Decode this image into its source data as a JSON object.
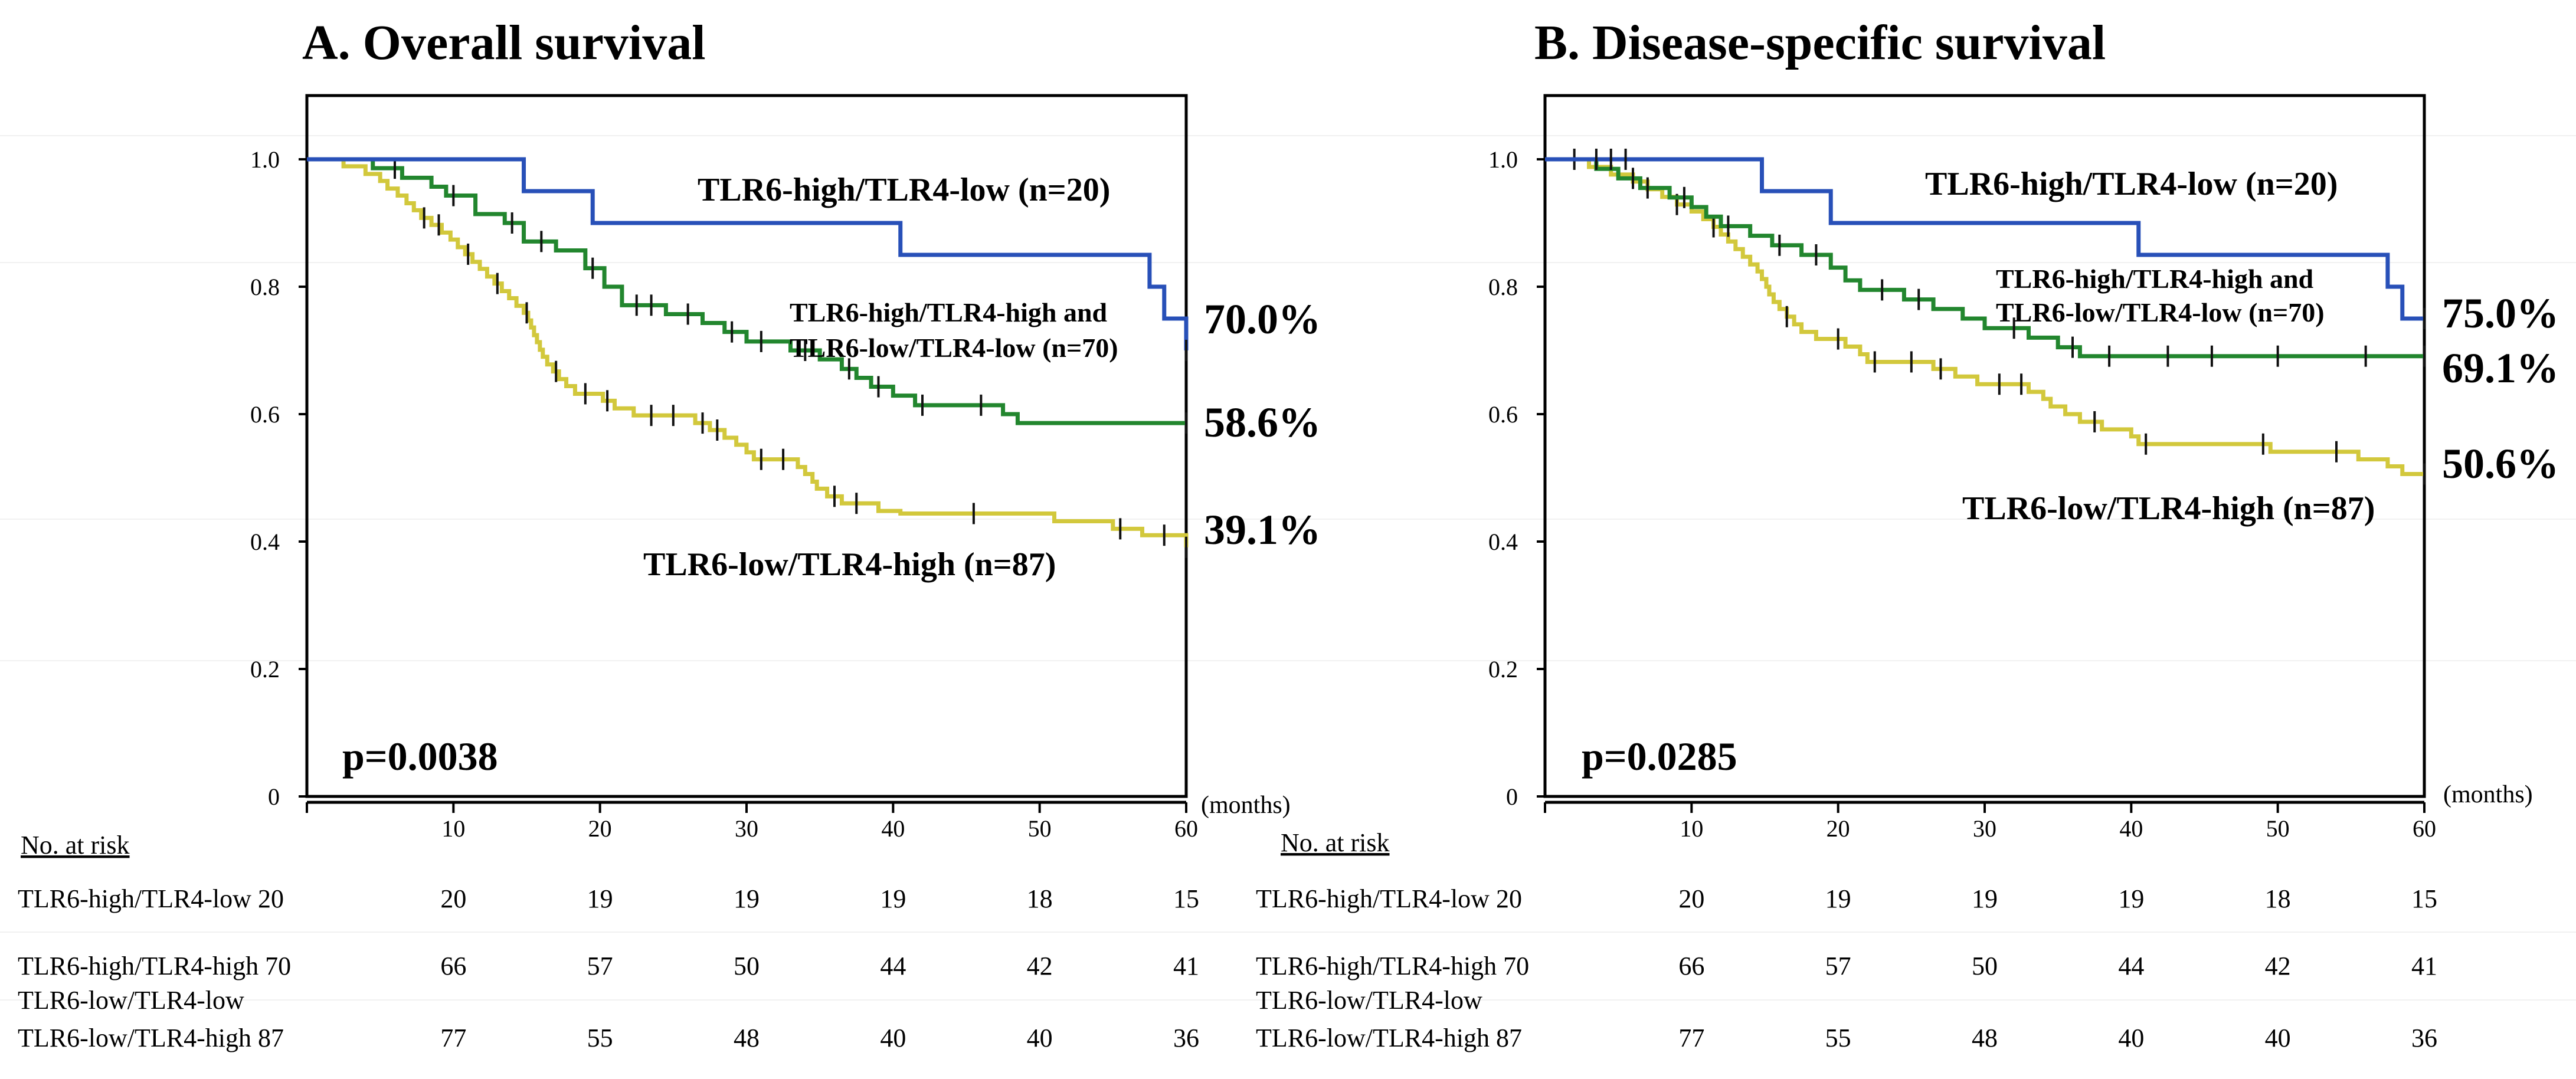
{
  "colors": {
    "TLR6-high/TLR4-low": "#2850b8",
    "TLR6-high/TLR4-high and TLR6-low/TLR4-low": "#22862e",
    "TLR6-low/TLR4-high": "#d2c83c"
  },
  "risk_header": "No. at risk",
  "x_unit": "(months)",
  "chart_data": [
    {
      "id": "A",
      "type": "line",
      "title": "A.  Overall survival",
      "xlabel": "(months)",
      "ylabel": "",
      "xlim": [
        0,
        60
      ],
      "ylim": [
        0,
        1.1
      ],
      "x_ticks": [
        10,
        20,
        30,
        40,
        50,
        60
      ],
      "y_ticks": [
        0,
        0.2,
        0.4,
        0.6,
        0.8,
        1.0
      ],
      "y_tick_labels": [
        "0",
        "0.2",
        "0.4",
        "0.6",
        "0.8",
        "1.0"
      ],
      "p_value": "p=0.0038",
      "series": [
        {
          "key": "TLR6-high/TLR4-low",
          "label_lines": [
            "TLR6-high/TLR4-low (n=20)"
          ],
          "label_style": "big",
          "end_label": "70.0%",
          "steps": [
            [
              0,
              1.0
            ],
            [
              14.8,
              0.95
            ],
            [
              19.5,
              0.9
            ],
            [
              40.5,
              0.85
            ],
            [
              57.5,
              0.8
            ],
            [
              58.5,
              0.75
            ],
            [
              60,
              0.7
            ]
          ],
          "censor": [
            60
          ]
        },
        {
          "key": "TLR6-high/TLR4-high and TLR6-low/TLR4-low",
          "label_lines": [
            "TLR6-high/TLR4-high and",
            "TLR6-low/TLR4-low  (n=70)"
          ],
          "label_style": "small",
          "end_label": "58.6%",
          "steps": [
            [
              0,
              1.0
            ],
            [
              4.5,
              0.986
            ],
            [
              6.5,
              0.971
            ],
            [
              8.5,
              0.957
            ],
            [
              9.5,
              0.943
            ],
            [
              11.5,
              0.914
            ],
            [
              13.5,
              0.9
            ],
            [
              14.8,
              0.871
            ],
            [
              17,
              0.857
            ],
            [
              19,
              0.829
            ],
            [
              20.3,
              0.8
            ],
            [
              21.5,
              0.771
            ],
            [
              24.5,
              0.757
            ],
            [
              27,
              0.743
            ],
            [
              28.5,
              0.729
            ],
            [
              30,
              0.714
            ],
            [
              33,
              0.7
            ],
            [
              35,
              0.686
            ],
            [
              36.5,
              0.671
            ],
            [
              37.5,
              0.657
            ],
            [
              38.5,
              0.643
            ],
            [
              40,
              0.629
            ],
            [
              41.5,
              0.614
            ],
            [
              47.5,
              0.6
            ],
            [
              48.5,
              0.586
            ],
            [
              60,
              0.586
            ]
          ],
          "censor": [
            6,
            10,
            14,
            16,
            19.5,
            22.5,
            23.5,
            26,
            29,
            31,
            34,
            37,
            39,
            42,
            46,
            60
          ]
        },
        {
          "key": "TLR6-low/TLR4-high",
          "label_lines": [
            "TLR6-low/TLR4-high (n=87)"
          ],
          "label_style": "big",
          "end_label": "39.1%",
          "steps": [
            [
              0,
              1.0
            ],
            [
              2.5,
              0.989
            ],
            [
              4,
              0.977
            ],
            [
              5,
              0.966
            ],
            [
              5.5,
              0.954
            ],
            [
              6.2,
              0.943
            ],
            [
              6.8,
              0.931
            ],
            [
              7.3,
              0.92
            ],
            [
              7.8,
              0.908
            ],
            [
              8.5,
              0.897
            ],
            [
              9.2,
              0.885
            ],
            [
              9.8,
              0.874
            ],
            [
              10.3,
              0.862
            ],
            [
              10.8,
              0.851
            ],
            [
              11.3,
              0.839
            ],
            [
              11.8,
              0.828
            ],
            [
              12.3,
              0.816
            ],
            [
              12.8,
              0.805
            ],
            [
              13.3,
              0.793
            ],
            [
              13.8,
              0.782
            ],
            [
              14.3,
              0.77
            ],
            [
              14.8,
              0.759
            ],
            [
              15.1,
              0.747
            ],
            [
              15.3,
              0.736
            ],
            [
              15.5,
              0.724
            ],
            [
              15.7,
              0.713
            ],
            [
              15.9,
              0.701
            ],
            [
              16.1,
              0.69
            ],
            [
              16.4,
              0.678
            ],
            [
              16.8,
              0.667
            ],
            [
              17.2,
              0.655
            ],
            [
              17.7,
              0.644
            ],
            [
              18.3,
              0.632
            ],
            [
              20.2,
              0.621
            ],
            [
              21,
              0.609
            ],
            [
              22.3,
              0.598
            ],
            [
              26.5,
              0.586
            ],
            [
              27.5,
              0.575
            ],
            [
              28.5,
              0.563
            ],
            [
              29.3,
              0.552
            ],
            [
              30,
              0.54
            ],
            [
              30.5,
              0.529
            ],
            [
              33.5,
              0.517
            ],
            [
              34,
              0.506
            ],
            [
              34.5,
              0.494
            ],
            [
              34.8,
              0.483
            ],
            [
              35.5,
              0.471
            ],
            [
              36.5,
              0.46
            ],
            [
              39,
              0.448
            ],
            [
              40.5,
              0.444
            ],
            [
              51,
              0.432
            ],
            [
              55,
              0.42
            ],
            [
              57,
              0.41
            ],
            [
              60,
              0.391
            ]
          ],
          "censor": [
            8,
            9,
            11,
            13,
            15,
            17,
            19,
            20.5,
            23.5,
            25,
            27,
            28,
            31,
            32.5,
            36,
            37.5,
            45.5,
            55.5,
            58.5,
            60
          ]
        }
      ],
      "risk_table": {
        "row_labels": [
          [
            "TLR6-high/TLR4-low  20"
          ],
          [
            "TLR6-high/TLR4-high 70",
            "TLR6-low/TLR4-low"
          ],
          [
            "TLR6-low/TLR4-high 87"
          ]
        ],
        "values": [
          [
            20,
            19,
            19,
            19,
            18,
            15
          ],
          [
            66,
            57,
            50,
            44,
            42,
            41
          ],
          [
            77,
            55,
            48,
            40,
            40,
            36
          ]
        ]
      }
    },
    {
      "id": "B",
      "type": "line",
      "title": "B. Disease-specific survival",
      "xlabel": "(months)",
      "ylabel": "",
      "xlim": [
        0,
        60
      ],
      "ylim": [
        0,
        1.1
      ],
      "x_ticks": [
        10,
        20,
        30,
        40,
        50,
        60
      ],
      "y_ticks": [
        0,
        0.2,
        0.4,
        0.6,
        0.8,
        1.0
      ],
      "y_tick_labels": [
        "0",
        "0.2",
        "0.4",
        "0.6",
        "0.8",
        "1.0"
      ],
      "p_value": "p=0.0285",
      "series": [
        {
          "key": "TLR6-high/TLR4-low",
          "label_lines": [
            "TLR6-high/TLR4-low (n=20)"
          ],
          "label_style": "big",
          "end_label": "75.0%",
          "steps": [
            [
              0,
              1.0
            ],
            [
              14.8,
              0.95
            ],
            [
              19.5,
              0.9
            ],
            [
              40.5,
              0.85
            ],
            [
              57.5,
              0.8
            ],
            [
              58.5,
              0.75
            ],
            [
              60,
              0.75
            ]
          ],
          "censor": [
            3.5,
            4.5,
            5.5,
            60
          ]
        },
        {
          "key": "TLR6-high/TLR4-high and TLR6-low/TLR4-low",
          "label_lines": [
            "TLR6-high/TLR4-high and",
            "TLR6-low/TLR4-low  (n=70)"
          ],
          "label_style": "small",
          "end_label": "69.1%",
          "steps": [
            [
              0,
              1.0
            ],
            [
              3.5,
              0.985
            ],
            [
              5,
              0.97
            ],
            [
              6.5,
              0.955
            ],
            [
              8.5,
              0.94
            ],
            [
              10,
              0.925
            ],
            [
              11,
              0.91
            ],
            [
              12,
              0.895
            ],
            [
              14,
              0.88
            ],
            [
              15.5,
              0.865
            ],
            [
              17.5,
              0.85
            ],
            [
              19.5,
              0.83
            ],
            [
              20.5,
              0.81
            ],
            [
              21.5,
              0.795
            ],
            [
              24.5,
              0.78
            ],
            [
              26.5,
              0.765
            ],
            [
              28.5,
              0.75
            ],
            [
              30,
              0.735
            ],
            [
              33,
              0.72
            ],
            [
              35,
              0.705
            ],
            [
              36.5,
              0.691
            ],
            [
              60,
              0.691
            ]
          ],
          "censor": [
            2,
            6,
            7,
            9.5,
            12.5,
            16,
            18.5,
            23,
            25.5,
            32,
            36,
            38.5,
            42.5,
            45.5,
            50,
            56,
            60
          ]
        },
        {
          "key": "TLR6-low/TLR4-high",
          "label_lines": [
            "TLR6-low/TLR4-high (n=87)"
          ],
          "label_style": "big",
          "end_label": "50.6%",
          "steps": [
            [
              0,
              1.0
            ],
            [
              3,
              0.988
            ],
            [
              4.5,
              0.976
            ],
            [
              6,
              0.965
            ],
            [
              7,
              0.953
            ],
            [
              8,
              0.941
            ],
            [
              9,
              0.929
            ],
            [
              10,
              0.918
            ],
            [
              10.8,
              0.906
            ],
            [
              11.5,
              0.894
            ],
            [
              12,
              0.882
            ],
            [
              12.5,
              0.871
            ],
            [
              13,
              0.859
            ],
            [
              13.5,
              0.847
            ],
            [
              14,
              0.835
            ],
            [
              14.5,
              0.824
            ],
            [
              14.8,
              0.812
            ],
            [
              15.1,
              0.8
            ],
            [
              15.3,
              0.788
            ],
            [
              15.6,
              0.776
            ],
            [
              16,
              0.765
            ],
            [
              16.5,
              0.753
            ],
            [
              17,
              0.741
            ],
            [
              17.5,
              0.729
            ],
            [
              18.5,
              0.718
            ],
            [
              20.5,
              0.706
            ],
            [
              21.5,
              0.694
            ],
            [
              22,
              0.682
            ],
            [
              26.5,
              0.671
            ],
            [
              28,
              0.659
            ],
            [
              29.5,
              0.647
            ],
            [
              33,
              0.635
            ],
            [
              34,
              0.624
            ],
            [
              34.5,
              0.612
            ],
            [
              35.5,
              0.6
            ],
            [
              36.5,
              0.588
            ],
            [
              38,
              0.576
            ],
            [
              40,
              0.565
            ],
            [
              40.5,
              0.553
            ],
            [
              49.5,
              0.541
            ],
            [
              55.5,
              0.529
            ],
            [
              57.5,
              0.518
            ],
            [
              58.5,
              0.506
            ],
            [
              60,
              0.506
            ]
          ],
          "censor": [
            9,
            11.5,
            16.5,
            20,
            22.5,
            25,
            27,
            31,
            32.5,
            37.5,
            41,
            49,
            54,
            60
          ]
        }
      ],
      "risk_table": {
        "row_labels": [
          [
            "TLR6-high/TLR4-low  20"
          ],
          [
            "TLR6-high/TLR4-high 70",
            "TLR6-low/TLR4-low"
          ],
          [
            "TLR6-low/TLR4-high 87"
          ]
        ],
        "values": [
          [
            20,
            19,
            19,
            19,
            18,
            15
          ],
          [
            66,
            57,
            50,
            44,
            42,
            41
          ],
          [
            77,
            55,
            48,
            40,
            40,
            36
          ]
        ]
      }
    }
  ]
}
